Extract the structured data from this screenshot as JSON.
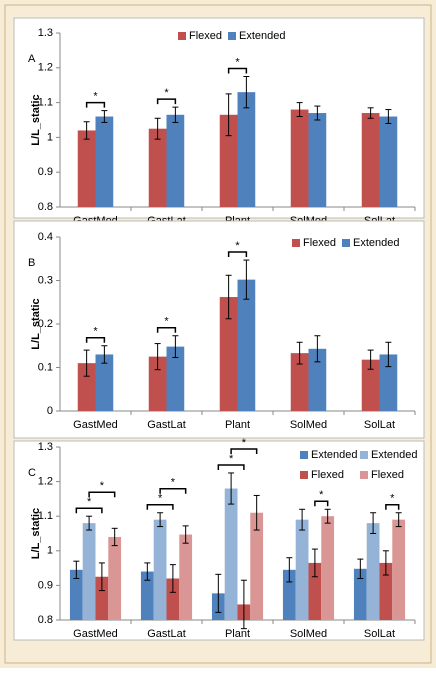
{
  "chart_data": [
    {
      "type": "bar",
      "panel_label": "A",
      "ylabel": "L/L_static",
      "categories": [
        "GastMed",
        "GastLat",
        "Plant",
        "SolMed",
        "SolLat"
      ],
      "series": [
        {
          "name": "Flexed",
          "color": "#c0504d",
          "values": [
            1.02,
            1.025,
            1.065,
            1.08,
            1.07
          ],
          "errors": [
            0.025,
            0.03,
            0.06,
            0.02,
            0.015
          ]
        },
        {
          "name": "Extended",
          "color": "#4f81bd",
          "values": [
            1.06,
            1.065,
            1.13,
            1.07,
            1.06
          ],
          "errors": [
            0.017,
            0.022,
            0.045,
            0.02,
            0.02
          ]
        }
      ],
      "ylim": [
        0.8,
        1.3
      ],
      "yticks": [
        0.8,
        0.9,
        1,
        1.1,
        1.2,
        1.3
      ],
      "legend": "top",
      "annotations": [
        {
          "text": "*",
          "category": "GastMed",
          "between": [
            0,
            1
          ]
        },
        {
          "text": "*",
          "category": "GastLat",
          "between": [
            0,
            1
          ]
        },
        {
          "text": "*",
          "category": "Plant",
          "between": [
            0,
            1
          ]
        }
      ]
    },
    {
      "type": "bar",
      "panel_label": "B",
      "ylabel": "L/L_static",
      "categories": [
        "GastMed",
        "GastLat",
        "Plant",
        "SolMed",
        "SolLat"
      ],
      "series": [
        {
          "name": "Flexed",
          "color": "#c0504d",
          "values": [
            0.11,
            0.125,
            0.262,
            0.133,
            0.118
          ],
          "errors": [
            0.03,
            0.03,
            0.05,
            0.025,
            0.022
          ]
        },
        {
          "name": "Extended",
          "color": "#4f81bd",
          "values": [
            0.13,
            0.148,
            0.302,
            0.143,
            0.13
          ],
          "errors": [
            0.02,
            0.025,
            0.045,
            0.03,
            0.028
          ]
        }
      ],
      "ylim": [
        0,
        0.4
      ],
      "yticks": [
        0,
        0.1,
        0.2,
        0.3,
        0.4
      ],
      "legend": "upper right",
      "annotations": [
        {
          "text": "*",
          "category": "GastMed",
          "between": [
            0,
            1
          ]
        },
        {
          "text": "*",
          "category": "GastLat",
          "between": [
            0,
            1
          ]
        },
        {
          "text": "*",
          "category": "Plant",
          "between": [
            0,
            1
          ]
        }
      ]
    },
    {
      "type": "bar",
      "panel_label": "C",
      "ylabel": "L/L_static",
      "categories": [
        "GastMed",
        "GastLat",
        "Plant",
        "SolMed",
        "SolLat"
      ],
      "series": [
        {
          "name": "Extended",
          "color": "#4f81bd",
          "values": [
            0.945,
            0.94,
            0.877,
            0.945,
            0.948
          ],
          "errors": [
            0.025,
            0.025,
            0.055,
            0.035,
            0.028
          ]
        },
        {
          "name": "Extended",
          "color": "#95b3d7",
          "values": [
            1.08,
            1.09,
            1.18,
            1.09,
            1.08
          ],
          "errors": [
            0.02,
            0.02,
            0.045,
            0.03,
            0.03
          ]
        },
        {
          "name": "Flexed",
          "color": "#c0504d",
          "values": [
            0.925,
            0.92,
            0.845,
            0.965,
            0.965
          ],
          "errors": [
            0.04,
            0.04,
            0.07,
            0.04,
            0.035
          ]
        },
        {
          "name": "Flexed",
          "color": "#d99694",
          "values": [
            1.04,
            1.047,
            1.11,
            1.1,
            1.09
          ],
          "errors": [
            0.025,
            0.025,
            0.05,
            0.02,
            0.02
          ]
        }
      ],
      "ylim": [
        0.8,
        1.3
      ],
      "yticks": [
        0.8,
        0.9,
        1,
        1.1,
        1.2,
        1.3
      ],
      "legend": "right",
      "annotations": [
        {
          "text": "*",
          "category": "GastMed",
          "between": [
            0,
            2
          ]
        },
        {
          "text": "*",
          "category": "GastMed",
          "between": [
            1,
            3
          ]
        },
        {
          "text": "*",
          "category": "GastLat",
          "between": [
            0,
            2
          ]
        },
        {
          "text": "*",
          "category": "GastLat",
          "between": [
            1,
            3
          ]
        },
        {
          "text": "*",
          "category": "Plant",
          "between": [
            0,
            2
          ]
        },
        {
          "text": "*",
          "category": "Plant",
          "between": [
            1,
            3
          ]
        },
        {
          "text": "*",
          "category": "SolMed",
          "between": [
            2,
            3
          ]
        },
        {
          "text": "*",
          "category": "SolLat",
          "between": [
            2,
            3
          ]
        }
      ]
    }
  ]
}
